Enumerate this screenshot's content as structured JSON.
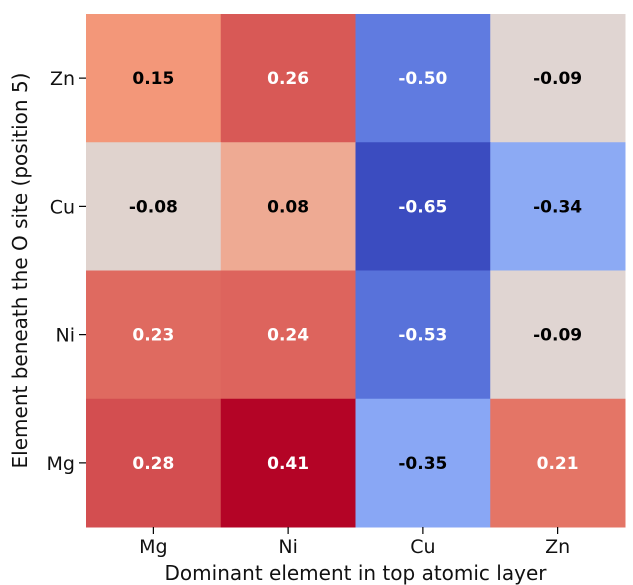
{
  "chart_data": {
    "type": "heatmap",
    "title": "",
    "xlabel": "Dominant element in top atomic layer",
    "ylabel": "Element beneath the O site (position 5)",
    "x_categories": [
      "Mg",
      "Ni",
      "Cu",
      "Zn"
    ],
    "y_categories": [
      "Zn",
      "Cu",
      "Ni",
      "Mg"
    ],
    "values": [
      [
        0.15,
        0.26,
        -0.5,
        -0.09
      ],
      [
        -0.08,
        0.08,
        -0.65,
        -0.34
      ],
      [
        0.23,
        0.24,
        -0.53,
        -0.09
      ],
      [
        0.28,
        0.41,
        -0.35,
        0.21
      ]
    ],
    "value_labels": [
      [
        "0.15",
        "0.26",
        "-0.50",
        "-0.09"
      ],
      [
        "-0.08",
        "0.08",
        "-0.65",
        "-0.34"
      ],
      [
        "0.23",
        "0.24",
        "-0.53",
        "-0.09"
      ],
      [
        "0.28",
        "0.41",
        "-0.35",
        "0.21"
      ]
    ],
    "colormap": "coolwarm",
    "color_range": [
      -0.65,
      0.41
    ],
    "colorbar": false,
    "grid": false,
    "legend": "none"
  }
}
